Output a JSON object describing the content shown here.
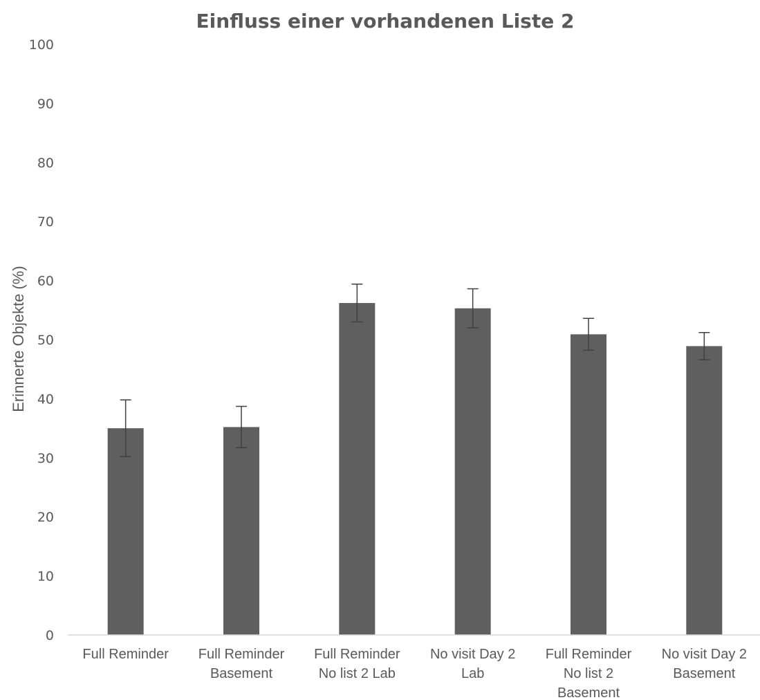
{
  "chart_data": {
    "type": "bar",
    "title": "Einfluss einer vorhandenen Liste 2",
    "xlabel": "",
    "ylabel": "Erinnerte Objekte (%)",
    "ylim": [
      0,
      100
    ],
    "yticks": [
      "0",
      "10",
      "20",
      "30",
      "40",
      "50",
      "60",
      "70",
      "80",
      "90",
      "100"
    ],
    "grid": false,
    "legend": "none",
    "categories": [
      [
        "Full Reminder"
      ],
      [
        "Full Reminder",
        "Basement"
      ],
      [
        "Full Reminder",
        "No list 2 Lab"
      ],
      [
        "No visit Day 2",
        "Lab"
      ],
      [
        "Full Reminder",
        "No list 2",
        "Basement"
      ],
      [
        "No visit Day 2",
        "Basement"
      ]
    ],
    "values": [
      35.0,
      35.2,
      56.2,
      55.3,
      50.9,
      48.9
    ],
    "errors": [
      4.8,
      3.5,
      3.2,
      3.3,
      2.7,
      2.3
    ],
    "colors": {
      "bar": "#5f5f5f",
      "error_bar": "#404040",
      "axis": "#d9d9d9",
      "text": "#595959"
    }
  }
}
